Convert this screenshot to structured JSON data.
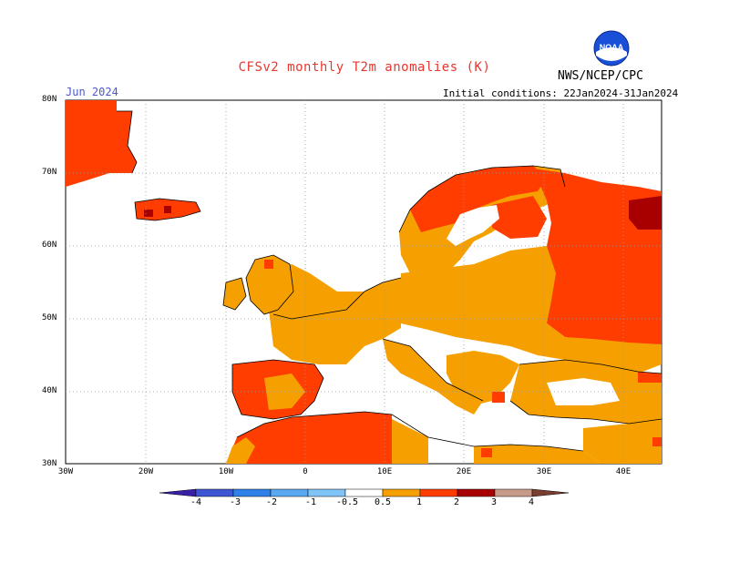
{
  "title": "CFSv2 monthly T2m anomalies (K)",
  "month": "Jun 2024",
  "agency": "NWS/NCEP/CPC",
  "initial_conditions": "Initial conditions: 22Jan2024-31Jan2024",
  "logo_text": "NOAA",
  "lat_labels": [
    "80N",
    "70N",
    "60N",
    "50N",
    "40N",
    "30N"
  ],
  "lon_labels": [
    "30W",
    "20W",
    "10W",
    "0",
    "10E",
    "20E",
    "30E",
    "40E"
  ],
  "colorbar": {
    "labels": [
      "-4",
      "-3",
      "-2",
      "-1",
      "-0.5",
      "0.5",
      "1",
      "2",
      "3",
      "4"
    ],
    "colors": [
      "#3a1fa8",
      "#3d57d4",
      "#2f80e8",
      "#5aa8f0",
      "#80c4f8",
      "#ffffff",
      "#f5a000",
      "#ff3d00",
      "#a80000",
      "#c89a8a",
      "#7a3e30"
    ]
  },
  "colors": {
    "anom_0_5_1": "#f5a000",
    "anom_1_2": "#ff3d00",
    "anom_2_3": "#a80000",
    "land_border": "#000000",
    "grid": "#999999",
    "title": "#e8362f",
    "month": "#4a57c8"
  }
}
